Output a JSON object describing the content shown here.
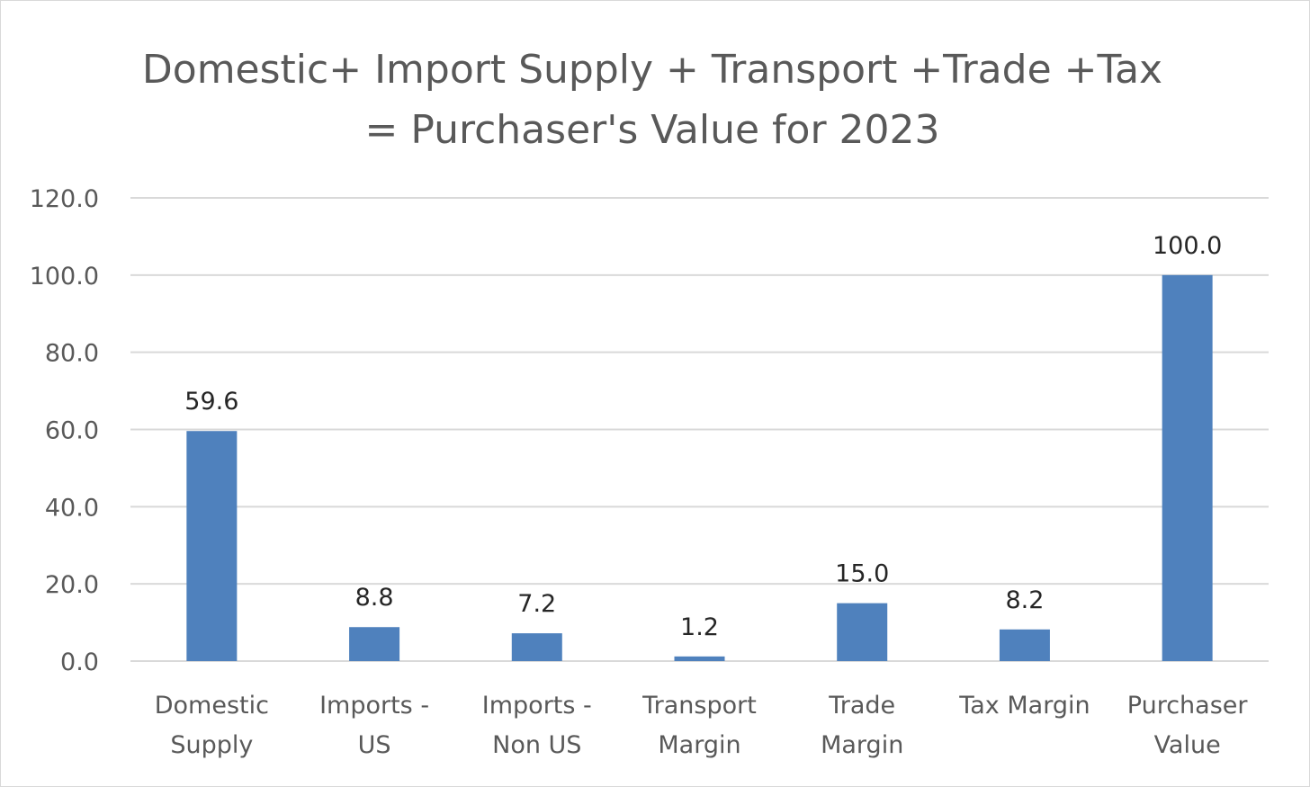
{
  "chart_data": {
    "type": "bar",
    "title_lines": [
      "Domestic+ Import Supply + Transport +Trade +Tax",
      "= Purchaser's Value for 2023"
    ],
    "xlabel": "",
    "ylabel": "",
    "categories": [
      [
        "Domestic",
        "Supply"
      ],
      [
        "Imports -",
        "US"
      ],
      [
        "Imports -",
        "Non US"
      ],
      [
        "Transport",
        "Margin"
      ],
      [
        "Trade",
        "Margin"
      ],
      [
        "Tax Margin"
      ],
      [
        "Purchaser",
        "Value"
      ]
    ],
    "values": [
      59.6,
      8.8,
      7.2,
      1.2,
      15.0,
      8.2,
      100.0
    ],
    "data_labels": [
      "59.6",
      "8.8",
      "7.2",
      "1.2",
      "15.0",
      "8.2",
      "100.0"
    ],
    "ylim": [
      0,
      120
    ],
    "yticks": [
      "0.0",
      "20.0",
      "40.0",
      "60.0",
      "80.0",
      "100.0",
      "120.0"
    ],
    "grid": true,
    "legend": "none",
    "bar_color": "#4f81bd",
    "grid_color": "#d9d9d9",
    "text_color": "#595959"
  }
}
